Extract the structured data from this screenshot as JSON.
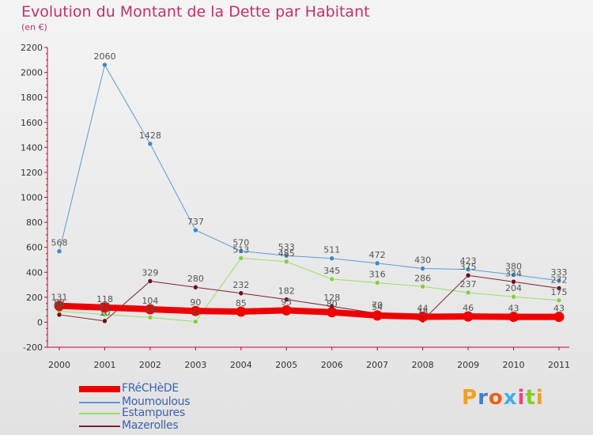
{
  "header": {
    "title": "Evolution du Montant de la Dette par Habitant",
    "subtitle": "(en €)"
  },
  "logo": {
    "text": "Proxiti"
  },
  "colors": {
    "title": "#c0306c",
    "axis": "#cc0033",
    "tick_text": "#333333",
    "label_text": "#555555"
  },
  "chart_data": {
    "type": "line",
    "x": [
      2000,
      2001,
      2002,
      2003,
      2004,
      2005,
      2006,
      2007,
      2008,
      2009,
      2010,
      2011
    ],
    "ylim": [
      -200,
      2200
    ],
    "yticks": [
      -200,
      0,
      200,
      400,
      600,
      800,
      1000,
      1200,
      1400,
      1600,
      1800,
      2000,
      2200
    ],
    "grid": false,
    "legend_position": "bottom-left",
    "series": [
      {
        "name": "FRéCHèDE",
        "color": "#ee0000",
        "marker": "#ee0000",
        "width": 8,
        "values": [
          131,
          118,
          104,
          90,
          85,
          95,
          80,
          54,
          44,
          46,
          43,
          43
        ],
        "labels": [
          "131",
          "118",
          "104",
          "90",
          "85",
          "95",
          "80",
          "54",
          "44",
          "46",
          "43",
          "43"
        ]
      },
      {
        "name": "Moumoulous",
        "color": "#5b9bd5",
        "marker": "#3f88c8",
        "width": 1,
        "values": [
          568,
          2060,
          1428,
          737,
          570,
          533,
          511,
          472,
          430,
          423,
          380,
          333
        ],
        "labels": [
          "568",
          "2060",
          "1428",
          "737",
          "570",
          "533",
          "511",
          "472",
          "430",
          "423",
          "380",
          "333"
        ]
      },
      {
        "name": "Estampures",
        "color": "#99dd66",
        "marker": "#88cc44",
        "width": 1,
        "values": [
          88,
          62,
          38,
          5,
          513,
          485,
          345,
          316,
          286,
          237,
          204,
          175
        ],
        "labels": [
          "88",
          "62",
          "38",
          "5",
          "513",
          "485",
          "345",
          "316",
          "286",
          "237",
          "204",
          "175"
        ]
      },
      {
        "name": "Mazerolles",
        "color": "#7a2030",
        "marker": "#6a1020",
        "width": 1,
        "values": [
          60,
          10,
          329,
          280,
          232,
          182,
          128,
          70,
          15,
          375,
          324,
          272
        ],
        "labels": [
          "60",
          "10",
          "329",
          "280",
          "232",
          "182",
          "128",
          "70",
          "15",
          "375",
          "324",
          "272"
        ]
      }
    ]
  }
}
